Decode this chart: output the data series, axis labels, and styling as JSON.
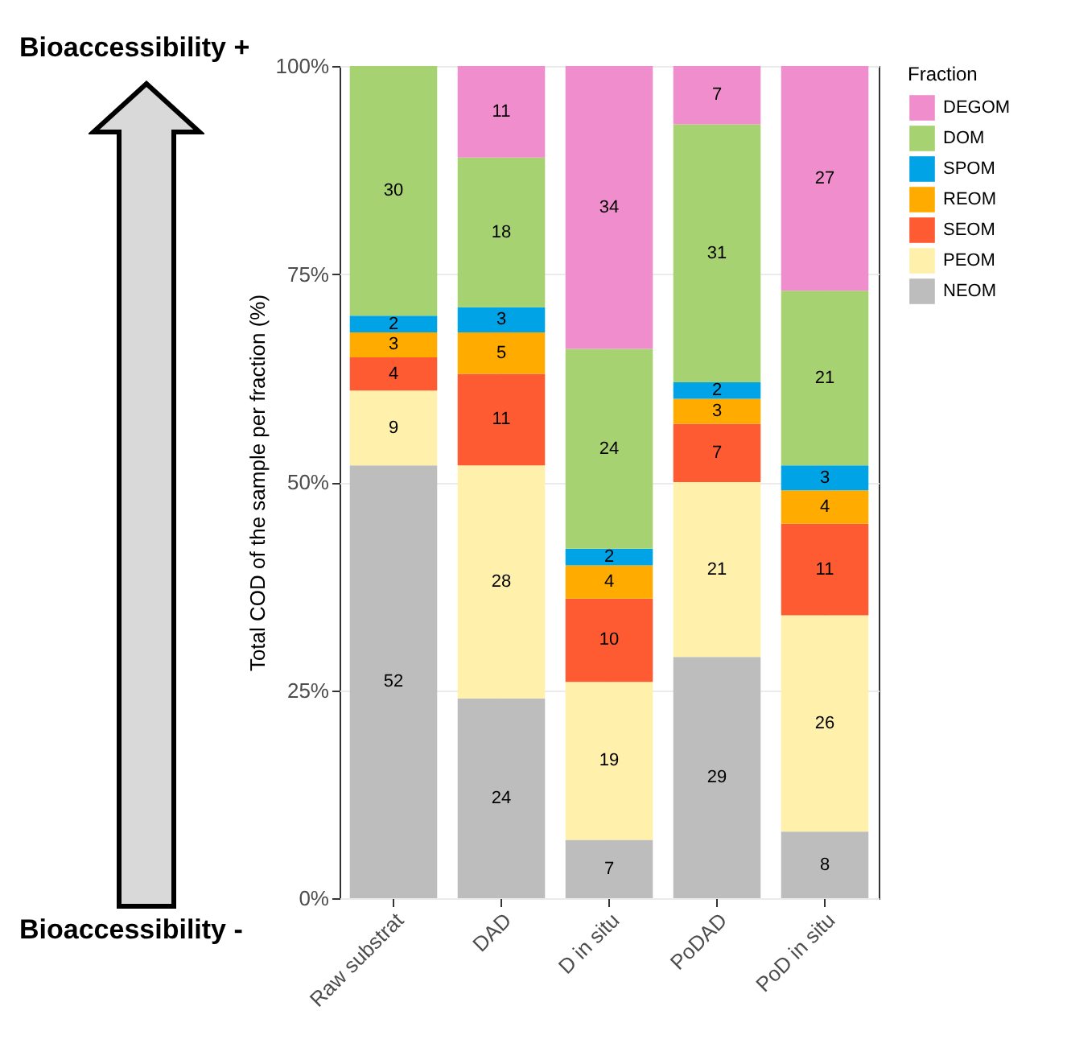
{
  "chart_data": {
    "type": "bar",
    "stacked": true,
    "ylabel": "Total COD of the sample per fraction (%)",
    "legend_title": "Fraction",
    "legend": "right",
    "grid": true,
    "data_labels": true,
    "categories": [
      "Raw substrat",
      "DAD",
      "D in situ",
      "PoDAD",
      "PoD in situ"
    ],
    "ylim": [
      0,
      100
    ],
    "yticks": [
      {
        "value": 0,
        "label": "0%"
      },
      {
        "value": 25,
        "label": "25%"
      },
      {
        "value": 50,
        "label": "50%"
      },
      {
        "value": 75,
        "label": "75%"
      },
      {
        "value": 100,
        "label": "100%"
      }
    ],
    "series": [
      {
        "name": "NEOM",
        "color": "#bdbdbd",
        "values": [
          52,
          24,
          7,
          29,
          8
        ]
      },
      {
        "name": "PEOM",
        "color": "#fff0ab",
        "values": [
          9,
          28,
          19,
          21,
          26
        ]
      },
      {
        "name": "SEOM",
        "color": "#ff5b33",
        "values": [
          4,
          11,
          10,
          7,
          11
        ]
      },
      {
        "name": "REOM",
        "color": "#ffab00",
        "values": [
          3,
          5,
          4,
          3,
          4
        ]
      },
      {
        "name": "SPOM",
        "color": "#00a3e6",
        "values": [
          2,
          3,
          2,
          2,
          3
        ]
      },
      {
        "name": "DOM",
        "color": "#a6d271",
        "values": [
          30,
          18,
          24,
          31,
          21
        ]
      },
      {
        "name": "DEGOM",
        "color": "#f08dcd",
        "values": [
          null,
          11,
          34,
          7,
          27
        ]
      }
    ],
    "annotations": [
      "Bioaccessibility +",
      "Bioaccessibility -"
    ]
  }
}
